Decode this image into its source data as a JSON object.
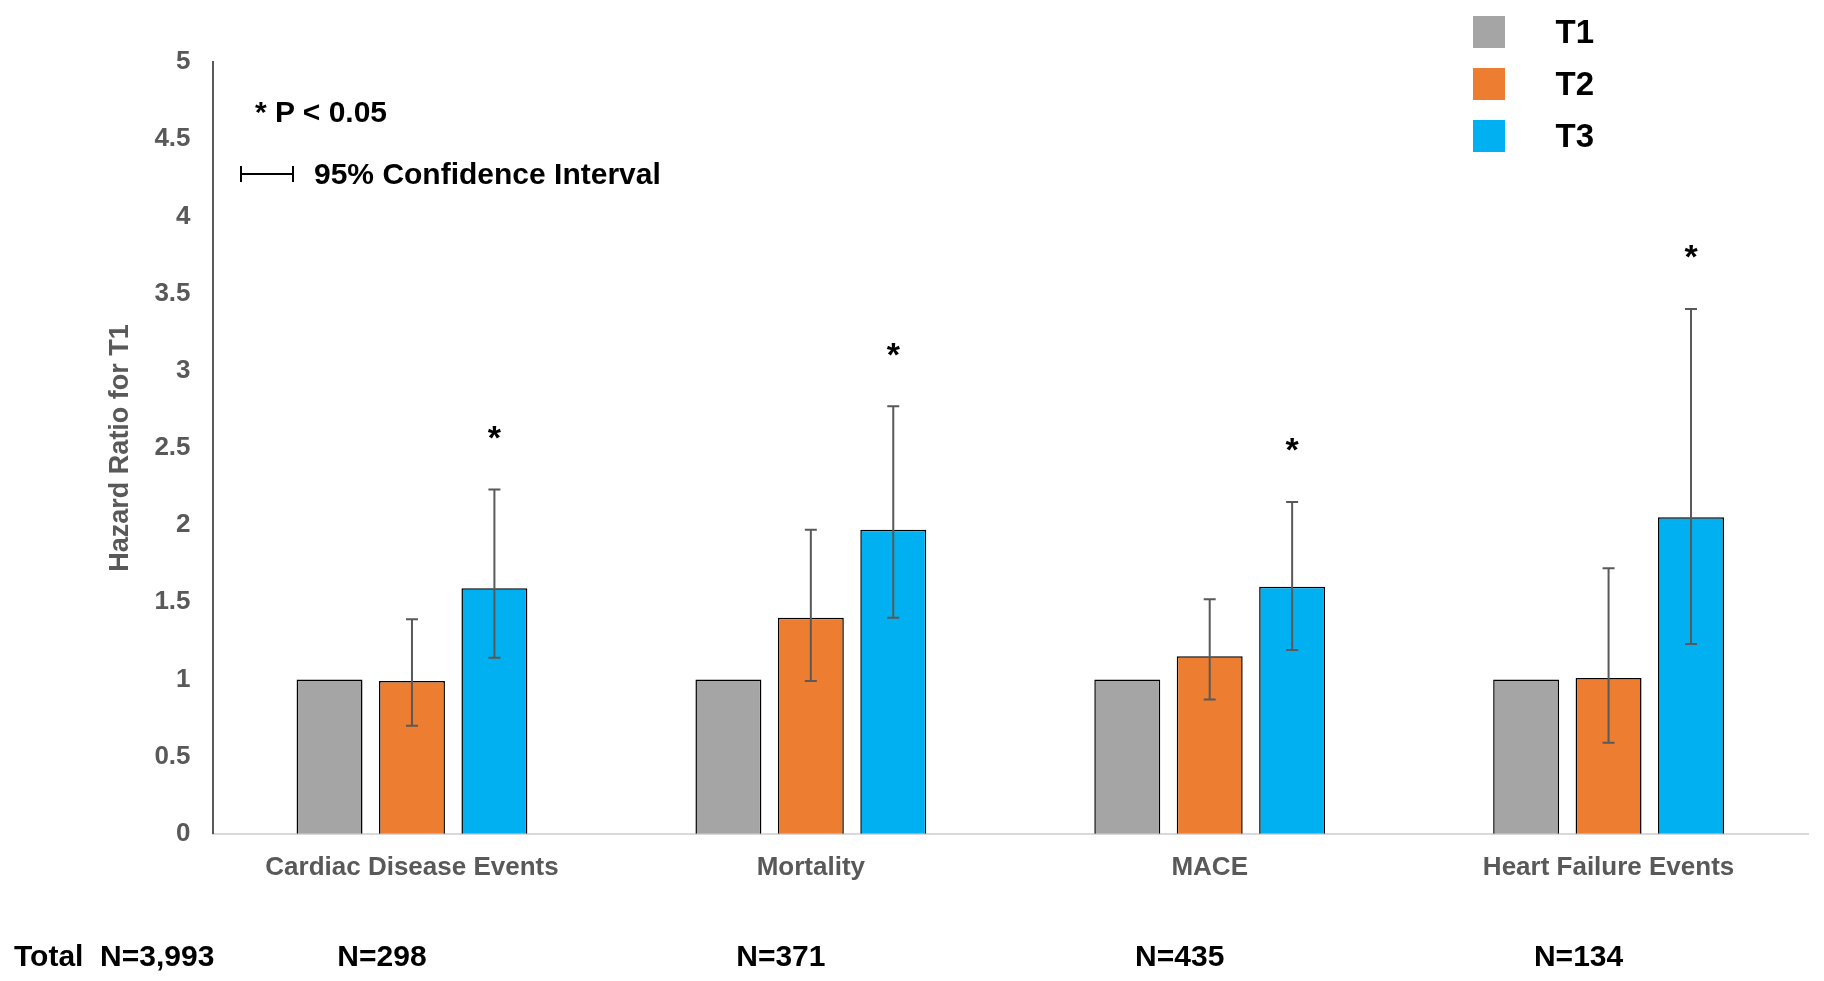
{
  "chart_data": {
    "type": "bar",
    "categories": [
      "Cardiac Disease Events",
      "Mortality",
      "MACE",
      "Heart Failure Events"
    ],
    "ylabel": "Hazard Ratio for T1",
    "ylim": [
      0,
      5
    ],
    "yticks": [
      0,
      0.5,
      1,
      1.5,
      2,
      2.5,
      3,
      3.5,
      4,
      4.5,
      5
    ],
    "grid": false,
    "legend": "top right",
    "series": [
      {
        "name": "T1",
        "color": "#a5a5a5",
        "values": [
          1,
          1,
          1,
          1
        ]
      },
      {
        "name": "T2",
        "color": "#ed7d31",
        "values": [
          0.99,
          1.4,
          1.15,
          1.01
        ],
        "errors": [
          [
            0.7,
            1.39
          ],
          [
            0.99,
            1.97
          ],
          [
            0.87,
            1.52
          ],
          [
            0.59,
            1.72
          ]
        ]
      },
      {
        "name": "T3",
        "color": "#00b0f0",
        "values": [
          1.59,
          1.97,
          1.6,
          2.05
        ],
        "errors": [
          [
            1.14,
            2.23
          ],
          [
            1.4,
            2.77
          ],
          [
            1.19,
            2.15
          ],
          [
            1.23,
            3.4
          ]
        ]
      }
    ],
    "annotations": [
      "* P < 0.05",
      "95% Confidence Interval",
      "Total  N=3,993",
      "N=298",
      "N=371",
      "N=435",
      "N=134",
      "*",
      "*",
      "*",
      "*"
    ]
  }
}
